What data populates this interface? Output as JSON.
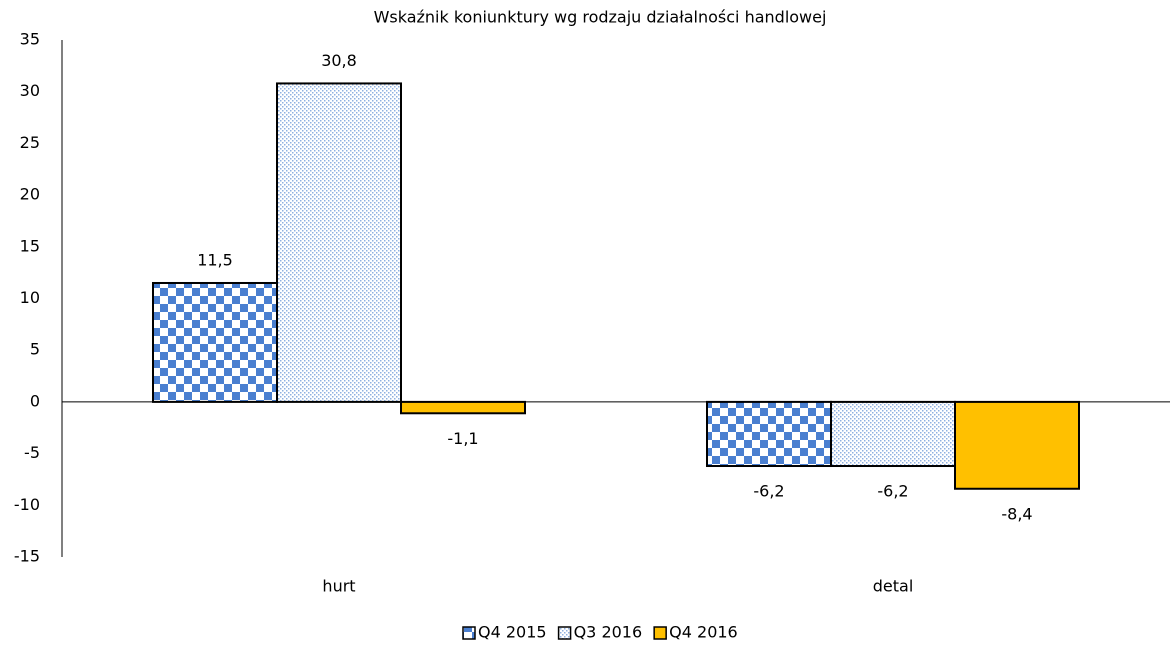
{
  "chart_data": {
    "type": "bar",
    "title": "Wskaźnik koniunktury wg rodzaju działalności handlowej",
    "categories": [
      "hurt",
      "detal"
    ],
    "series": [
      {
        "name": "Q4 2015",
        "color": "#4a7fd0",
        "pattern": "checker",
        "values": [
          11.5,
          -6.2
        ],
        "value_labels": [
          "11,5",
          "-6,2"
        ]
      },
      {
        "name": "Q3 2016",
        "color": "#8fb0e0",
        "pattern": "dots",
        "values": [
          30.8,
          -6.2
        ],
        "value_labels": [
          "30,8",
          "-6,2"
        ]
      },
      {
        "name": "Q4 2016",
        "color": "#ffc000",
        "pattern": "solid",
        "values": [
          -1.1,
          -8.4
        ],
        "value_labels": [
          "-1,1",
          "-8,4"
        ]
      }
    ],
    "ylim": [
      -15,
      35
    ],
    "yticks": [
      -15,
      -10,
      -5,
      0,
      5,
      10,
      15,
      20,
      25,
      30,
      35
    ],
    "grid": false,
    "legend": "bottom"
  }
}
